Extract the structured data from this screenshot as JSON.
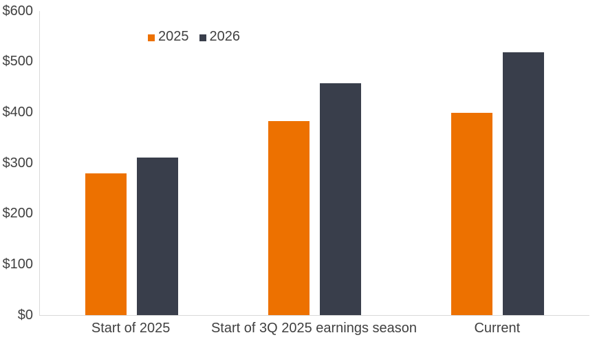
{
  "chart_data": {
    "type": "bar",
    "title": "",
    "xlabel": "",
    "ylabel": "",
    "categories": [
      "Start of 2025",
      "Start of 3Q 2025 earnings season",
      "Current"
    ],
    "series": [
      {
        "name": "2025",
        "color": "#ED7100",
        "values": [
          280,
          383,
          399
        ]
      },
      {
        "name": "2026",
        "color": "#393E4B",
        "values": [
          311,
          457,
          518
        ]
      }
    ],
    "ylim": [
      0,
      600
    ],
    "y_ticks": [
      {
        "value": 0,
        "label": "$0"
      },
      {
        "value": 100,
        "label": "$100"
      },
      {
        "value": 200,
        "label": "$200"
      },
      {
        "value": 300,
        "label": "$300"
      },
      {
        "value": 400,
        "label": "$400"
      },
      {
        "value": 500,
        "label": "$500"
      },
      {
        "value": 600,
        "label": "$600"
      }
    ],
    "grid": "off",
    "legend_position": "inside-top-left"
  },
  "colors": {
    "background": "#FFFFFF",
    "axis_line": "#D9D9D9",
    "text": "#404040",
    "series_2025": "#ED7100",
    "series_2026": "#393E4B"
  }
}
